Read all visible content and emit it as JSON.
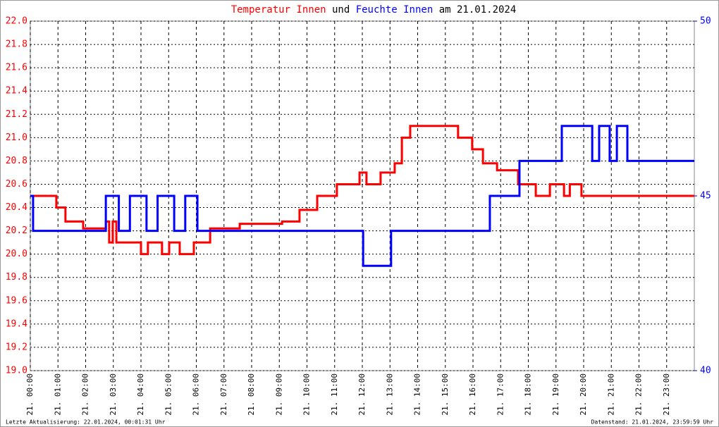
{
  "chart_data": {
    "type": "line",
    "title_parts": [
      {
        "text": "Temperatur Innen",
        "color": "#ff0000"
      },
      {
        "text": "und",
        "color": "#000000"
      },
      {
        "text": "Feuchte Innen",
        "color": "#0000ff"
      },
      {
        "text": "am 21.01.2024",
        "color": "#000000"
      }
    ],
    "footer_left": "Letzte Aktualisierung: 22.01.2024, 00:01:31 Uhr",
    "footer_right": "Datenstand: 21.01.2024, 23:59:59 Uhr",
    "grid": true,
    "xlim": [
      0,
      24
    ],
    "xticks": [
      {
        "value": 0,
        "label": "21. 00:00"
      },
      {
        "value": 1,
        "label": "21. 01:00"
      },
      {
        "value": 2,
        "label": "21. 02:00"
      },
      {
        "value": 3,
        "label": "21. 03:00"
      },
      {
        "value": 4,
        "label": "21. 04:00"
      },
      {
        "value": 5,
        "label": "21. 05:00"
      },
      {
        "value": 6,
        "label": "21. 06:00"
      },
      {
        "value": 7,
        "label": "21. 07:00"
      },
      {
        "value": 8,
        "label": "21. 08:00"
      },
      {
        "value": 9,
        "label": "21. 09:00"
      },
      {
        "value": 10,
        "label": "21. 10:00"
      },
      {
        "value": 11,
        "label": "21. 11:00"
      },
      {
        "value": 12,
        "label": "21. 12:00"
      },
      {
        "value": 13,
        "label": "21. 13:00"
      },
      {
        "value": 14,
        "label": "21. 14:00"
      },
      {
        "value": 15,
        "label": "21. 15:00"
      },
      {
        "value": 16,
        "label": "21. 16:00"
      },
      {
        "value": 17,
        "label": "21. 17:00"
      },
      {
        "value": 18,
        "label": "21. 18:00"
      },
      {
        "value": 19,
        "label": "21. 19:00"
      },
      {
        "value": 20,
        "label": "21. 20:00"
      },
      {
        "value": 21,
        "label": "21. 21:00"
      },
      {
        "value": 22,
        "label": "21. 22:00"
      },
      {
        "value": 23,
        "label": "21. 23:00"
      }
    ],
    "ylim": [
      19.0,
      22.0
    ],
    "yticks": [
      {
        "value": 19.0,
        "label": "19.0"
      },
      19.2,
      19.4,
      19.6,
      19.8,
      {
        "value": 20.0,
        "label": "20.0"
      },
      20.2,
      20.4,
      20.6,
      20.8,
      {
        "value": 21.0,
        "label": "21.0"
      },
      21.2,
      21.4,
      21.6,
      21.8,
      {
        "value": 22.0,
        "label": "22.0"
      }
    ],
    "y2lim": [
      40,
      50
    ],
    "y2ticks": [
      40,
      45,
      50
    ],
    "series": [
      {
        "name": "Temperatur Innen",
        "color": "#ff0000",
        "x": [
          0,
          0.94,
          0.94,
          1.27,
          1.27,
          1.91,
          1.91,
          2.73,
          2.73,
          2.85,
          2.85,
          2.98,
          2.98,
          3.11,
          3.11,
          4.0,
          4.0,
          4.25,
          4.25,
          4.76,
          4.76,
          5.02,
          5.02,
          5.4,
          5.4,
          5.91,
          5.91,
          6.5,
          6.5,
          7.57,
          7.57,
          9.1,
          9.1,
          9.73,
          9.73,
          10.37,
          10.37,
          11.08,
          11.08,
          11.9,
          11.9,
          12.15,
          12.15,
          12.66,
          12.66,
          13.17,
          13.17,
          13.43,
          13.43,
          13.73,
          13.73,
          15.46,
          15.46,
          15.97,
          15.97,
          16.36,
          16.36,
          16.87,
          16.87,
          17.63,
          17.63,
          18.27,
          18.27,
          18.78,
          18.78,
          19.29,
          19.29,
          19.5,
          19.5,
          19.92,
          19.92,
          24
        ],
        "values": [
          20.5,
          20.5,
          20.4,
          20.4,
          20.28,
          20.28,
          20.22,
          20.22,
          20.28,
          20.28,
          20.1,
          20.1,
          20.28,
          20.28,
          20.1,
          20.1,
          20.0,
          20.0,
          20.1,
          20.1,
          20.0,
          20.0,
          20.1,
          20.1,
          20.0,
          20.0,
          20.1,
          20.1,
          20.22,
          20.22,
          20.26,
          20.26,
          20.28,
          20.28,
          20.38,
          20.38,
          20.5,
          20.5,
          20.6,
          20.6,
          20.7,
          20.7,
          20.6,
          20.6,
          20.7,
          20.7,
          20.78,
          20.78,
          21.0,
          21.0,
          21.1,
          21.1,
          21.0,
          21.0,
          20.9,
          20.9,
          20.78,
          20.78,
          20.72,
          20.72,
          20.6,
          20.6,
          20.5,
          20.5,
          20.6,
          20.6,
          20.5,
          20.5,
          20.6,
          20.6,
          20.5,
          20.5
        ]
      },
      {
        "name": "Feuchte Innen",
        "color": "#0000ff",
        "axis": "y2",
        "x": [
          0,
          0.1,
          0.1,
          2.73,
          2.73,
          3.2,
          3.2,
          3.6,
          3.6,
          4.2,
          4.2,
          4.6,
          4.6,
          5.2,
          5.2,
          5.6,
          5.6,
          6.04,
          6.04,
          12.03,
          12.03,
          13.04,
          13.04,
          16.61,
          16.61,
          17.68,
          17.68,
          19.21,
          19.21,
          20.31,
          20.31,
          20.56,
          20.56,
          20.94,
          20.94,
          21.2,
          21.2,
          21.58,
          21.58,
          24
        ],
        "values": [
          45,
          45,
          44,
          44,
          45,
          45,
          44,
          44,
          45,
          45,
          44,
          44,
          45,
          45,
          44,
          44,
          45,
          45,
          44,
          44,
          43,
          43,
          44,
          44,
          45,
          45,
          46,
          46,
          47,
          47,
          46,
          46,
          47,
          47,
          46,
          46,
          47,
          47,
          46,
          46
        ]
      }
    ]
  }
}
